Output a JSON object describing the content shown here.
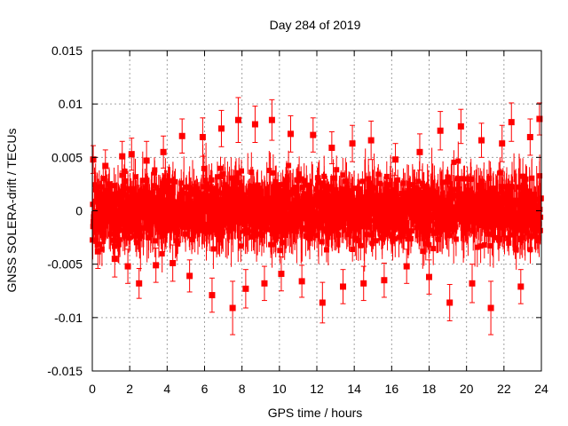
{
  "chart_data": {
    "type": "scatter",
    "title": "Day 284 of 2019",
    "xlabel": "GPS time / hours",
    "ylabel": "GNSS SOLERA-drift / TECUs",
    "xlim": [
      0,
      24
    ],
    "ylim": [
      -0.015,
      0.015
    ],
    "x_ticks": [
      0,
      2,
      4,
      6,
      8,
      10,
      12,
      14,
      16,
      18,
      20,
      22,
      24
    ],
    "x_tick_labels": [
      "0",
      "2",
      "4",
      "6",
      "8",
      "10",
      "12",
      "14",
      "16",
      "18",
      "20",
      "22",
      "24"
    ],
    "y_ticks": [
      -0.015,
      -0.01,
      -0.005,
      0,
      0.005,
      0.01,
      0.015
    ],
    "y_tick_labels": [
      "-0.015",
      "-0.01",
      "-0.005",
      "0",
      "0.005",
      "0.01",
      "0.015"
    ],
    "grid": true,
    "legend": "none",
    "marker": "filled-square",
    "error_bars": true,
    "color": "#ff0000",
    "series": [
      {
        "x": [
          0.05,
          0.3,
          0.7,
          1.2,
          1.6,
          1.9,
          2.1,
          2.5,
          2.9,
          3.4,
          3.8,
          4.3,
          4.8,
          5.2,
          5.9,
          6.4,
          6.9,
          7.5,
          7.8,
          8.2,
          8.7,
          9.2,
          9.6,
          10.1,
          10.6,
          11.2,
          11.8,
          12.3,
          12.8,
          13.4,
          13.9,
          14.5,
          14.9,
          15.6,
          16.2,
          16.8,
          17.5,
          18.0,
          18.6,
          19.1,
          19.7,
          20.3,
          20.8,
          21.3,
          21.9,
          22.4,
          22.9,
          23.4,
          23.9
        ],
        "y": [
          0.0048,
          -0.0038,
          0.0042,
          -0.0045,
          0.0051,
          -0.0052,
          0.0053,
          -0.0068,
          0.0047,
          -0.0051,
          0.0055,
          -0.0049,
          0.007,
          -0.0061,
          0.0069,
          -0.0079,
          0.0077,
          -0.0091,
          0.0085,
          -0.0073,
          0.0081,
          -0.0068,
          0.0085,
          -0.0059,
          0.0072,
          -0.0066,
          0.0071,
          -0.0086,
          0.0059,
          -0.0071,
          0.0063,
          -0.0068,
          0.0066,
          -0.0065,
          0.0048,
          -0.0052,
          0.0055,
          -0.0062,
          0.0075,
          -0.0086,
          0.0079,
          -0.0068,
          0.0066,
          -0.0091,
          0.0063,
          0.0083,
          -0.0071,
          0.0069,
          0.0086
        ],
        "err": [
          0.0013,
          0.0016,
          0.0015,
          0.0017,
          0.0014,
          0.0016,
          0.0015,
          0.0014,
          0.0018,
          0.0016,
          0.0015,
          0.0017,
          0.0016,
          0.0015,
          0.0018,
          0.0016,
          0.0017,
          0.0025,
          0.0021,
          0.0018,
          0.0017,
          0.0016,
          0.0019,
          0.0016,
          0.0017,
          0.0015,
          0.0016,
          0.0019,
          0.0015,
          0.0016,
          0.0017,
          0.0016,
          0.0018,
          0.0016,
          0.0015,
          0.0016,
          0.0017,
          0.0016,
          0.0018,
          0.0017,
          0.0016,
          0.0018,
          0.0016,
          0.0025,
          0.0017,
          0.0018,
          0.0016,
          0.0017,
          0.0015
        ]
      }
    ]
  }
}
